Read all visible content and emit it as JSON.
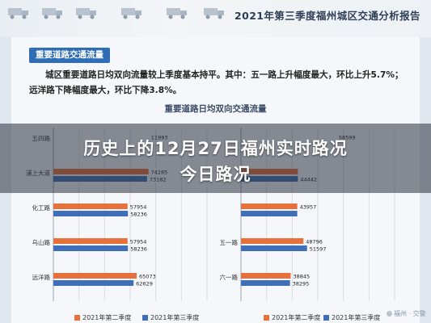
{
  "report": {
    "title": "2021年第三季度福州城区交通分析报告"
  },
  "section": {
    "tag": "重要道路交通流量",
    "paragraph": "城区重要道路日均双向流量较上季度基本持平。其中：五一路上升幅度最大，环比上升5.7%；远洋路下降幅度最大，环比下降3.8%。"
  },
  "chart": {
    "title": "重要道路日均双向交通流量"
  },
  "headline": {
    "line1": "历史上的12月27日福州实时路况",
    "line2": "今日路况"
  },
  "legend": {
    "left": [
      {
        "label": "2021年第二季度",
        "color": "#e8703a"
      },
      {
        "label": "2021年第三季度",
        "color": "#3f6fb8"
      }
    ],
    "right": [
      {
        "label": "2021年第二季度",
        "color": "#e8703a"
      },
      {
        "label": "2021年第三季度",
        "color": "#3f6fb8"
      }
    ]
  },
  "watermark": {
    "text": "福州 · 交警"
  },
  "chart_data": [
    {
      "type": "bar",
      "orientation": "horizontal",
      "title": "重要道路日均双向交通流量",
      "categories": [
        "五四路",
        "浦上大道",
        "化工路",
        "乌山路",
        "远洋路"
      ],
      "series": [
        {
          "name": "2021年第二季度",
          "values": [
            null,
            74285,
            57954,
            57954,
            65073
          ]
        },
        {
          "name": "2021年第三季度",
          "values": [
            null,
            73182,
            58236,
            58236,
            62629
          ]
        }
      ],
      "value_labels": {
        "2021年第二季度": [
          "11993",
          "74285",
          "57954",
          "57954",
          "65073"
        ],
        "2021年第三季度": [
          "",
          "73182",
          "58236",
          "58236",
          "62629"
        ]
      },
      "xlim": [
        0,
        120000
      ],
      "grid": true,
      "legend": "bottom"
    },
    {
      "type": "bar",
      "orientation": "horizontal",
      "categories": [
        "",
        "",
        "",
        "五一路",
        "六一路"
      ],
      "series": [
        {
          "name": "2021年第二季度",
          "values": [
            null,
            44442,
            43957,
            48796,
            38845
          ]
        },
        {
          "name": "2021年第三季度",
          "values": [
            null,
            44442,
            43957,
            51597,
            38295
          ]
        }
      ],
      "value_labels": {
        "2021年第二季度": [
          "58599",
          "",
          "43957",
          "48796",
          "38845"
        ],
        "2021年第三季度": [
          "",
          "44442",
          "",
          "51597",
          "38295"
        ]
      },
      "xlim": [
        0,
        120000
      ],
      "grid": true,
      "legend": "bottom"
    }
  ]
}
